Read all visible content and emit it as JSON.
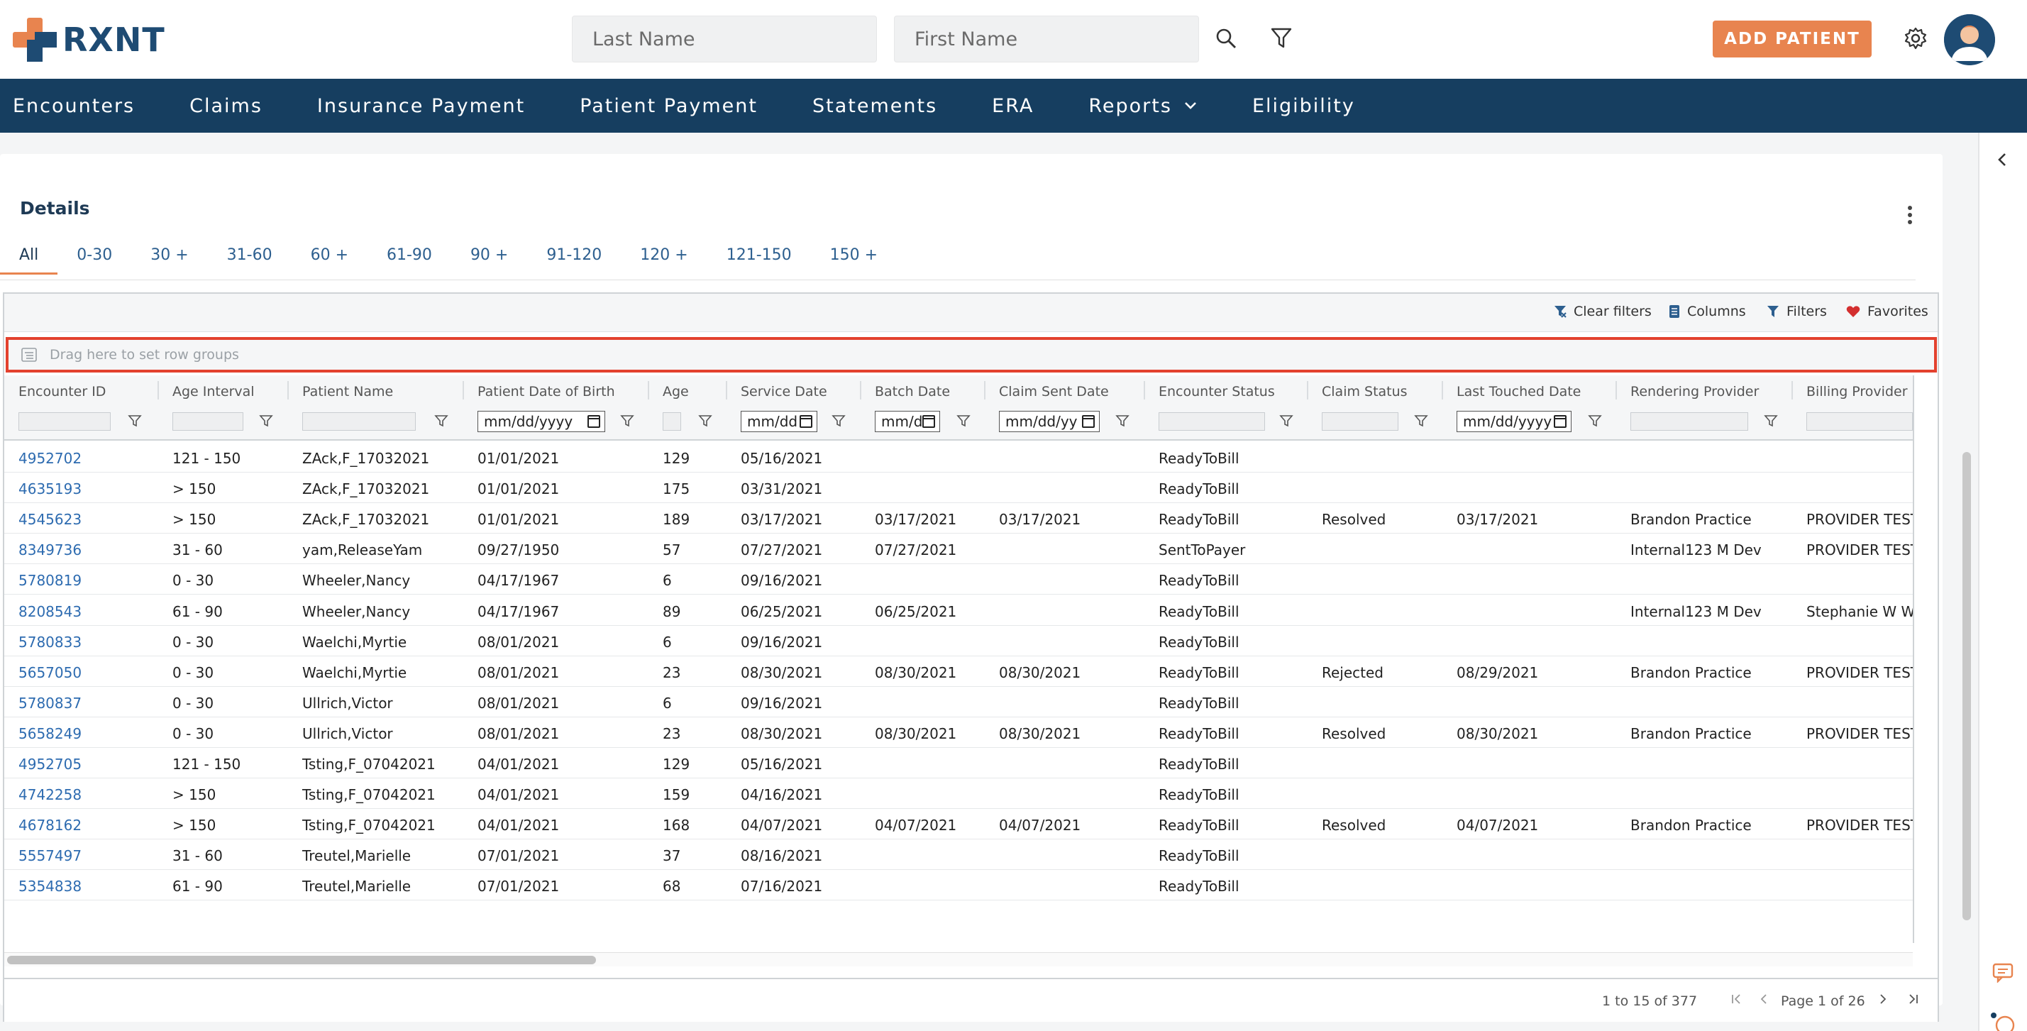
{
  "brand": {
    "name": "RXNT"
  },
  "search": {
    "last_name_placeholder": "Last Name",
    "first_name_placeholder": "First Name"
  },
  "actions": {
    "add_patient": "ADD PATIENT"
  },
  "nav": {
    "items": [
      "Encounters",
      "Claims",
      "Insurance Payment",
      "Patient Payment",
      "Statements",
      "ERA",
      "Reports",
      "Eligibility"
    ]
  },
  "details": {
    "title": "Details",
    "tabs": [
      "All",
      "0-30",
      "30 +",
      "31-60",
      "60 +",
      "61-90",
      "90 +",
      "91-120",
      "120 +",
      "121-150",
      "150 +"
    ],
    "active_tab": "All"
  },
  "toolbar": {
    "clear_filters": "Clear filters",
    "columns": "Columns",
    "filters": "Filters",
    "favorites": "Favorites"
  },
  "group_bar": {
    "placeholder": "Drag here to set row groups"
  },
  "columns": [
    "Encounter ID",
    "Age Interval",
    "Patient Name",
    "Patient Date of Birth",
    "Age",
    "Service Date",
    "Batch Date",
    "Claim Sent Date",
    "Encounter Status",
    "Claim Status",
    "Last Touched Date",
    "Rendering Provider",
    "Billing Provider"
  ],
  "filters": {
    "dob": "mm/dd/yyyy",
    "service": "mm/dd",
    "batch": "mm/d",
    "sent": "mm/dd/yy",
    "touched": "mm/dd/yyyy"
  },
  "rows": [
    [
      "4952702",
      "121 - 150",
      "ZAck,F_17032021",
      "01/01/2021",
      "129",
      "05/16/2021",
      "",
      "",
      "ReadyToBill",
      "",
      "",
      "",
      ""
    ],
    [
      "4635193",
      "> 150",
      "ZAck,F_17032021",
      "01/01/2021",
      "175",
      "03/31/2021",
      "",
      "",
      "ReadyToBill",
      "",
      "",
      "",
      ""
    ],
    [
      "4545623",
      "> 150",
      "ZAck,F_17032021",
      "01/01/2021",
      "189",
      "03/17/2021",
      "03/17/2021",
      "03/17/2021",
      "ReadyToBill",
      "Resolved",
      "03/17/2021",
      "Brandon Practice",
      "PROVIDER TEST"
    ],
    [
      "8349736",
      "31 - 60",
      "yam,ReleaseYam",
      "09/27/1950",
      "57",
      "07/27/2021",
      "07/27/2021",
      "",
      "SentToPayer",
      "",
      "",
      "Internal123 M Dev",
      "PROVIDER TEST"
    ],
    [
      "5780819",
      "0 - 30",
      "Wheeler,Nancy",
      "04/17/1967",
      "6",
      "09/16/2021",
      "",
      "",
      "ReadyToBill",
      "",
      "",
      "",
      ""
    ],
    [
      "8208543",
      "61 - 90",
      "Wheeler,Nancy",
      "04/17/1967",
      "89",
      "06/25/2021",
      "06/25/2021",
      "",
      "ReadyToBill",
      "",
      "",
      "Internal123 M Dev",
      "Stephanie W Wi"
    ],
    [
      "5780833",
      "0 - 30",
      "Waelchi,Myrtie",
      "08/01/2021",
      "6",
      "09/16/2021",
      "",
      "",
      "ReadyToBill",
      "",
      "",
      "",
      ""
    ],
    [
      "5657050",
      "0 - 30",
      "Waelchi,Myrtie",
      "08/01/2021",
      "23",
      "08/30/2021",
      "08/30/2021",
      "08/30/2021",
      "ReadyToBill",
      "Rejected",
      "08/29/2021",
      "Brandon Practice",
      "PROVIDER TEST"
    ],
    [
      "5780837",
      "0 - 30",
      "Ullrich,Victor",
      "08/01/2021",
      "6",
      "09/16/2021",
      "",
      "",
      "ReadyToBill",
      "",
      "",
      "",
      ""
    ],
    [
      "5658249",
      "0 - 30",
      "Ullrich,Victor",
      "08/01/2021",
      "23",
      "08/30/2021",
      "08/30/2021",
      "08/30/2021",
      "ReadyToBill",
      "Resolved",
      "08/30/2021",
      "Brandon Practice",
      "PROVIDER TEST"
    ],
    [
      "4952705",
      "121 - 150",
      "Tsting,F_07042021",
      "04/01/2021",
      "129",
      "05/16/2021",
      "",
      "",
      "ReadyToBill",
      "",
      "",
      "",
      ""
    ],
    [
      "4742258",
      "> 150",
      "Tsting,F_07042021",
      "04/01/2021",
      "159",
      "04/16/2021",
      "",
      "",
      "ReadyToBill",
      "",
      "",
      "",
      ""
    ],
    [
      "4678162",
      "> 150",
      "Tsting,F_07042021",
      "04/01/2021",
      "168",
      "04/07/2021",
      "04/07/2021",
      "04/07/2021",
      "ReadyToBill",
      "Resolved",
      "04/07/2021",
      "Brandon Practice",
      "PROVIDER TEST"
    ],
    [
      "5557497",
      "31 - 60",
      "Treutel,Marielle",
      "07/01/2021",
      "37",
      "08/16/2021",
      "",
      "",
      "ReadyToBill",
      "",
      "",
      "",
      ""
    ],
    [
      "5354838",
      "61 - 90",
      "Treutel,Marielle",
      "07/01/2021",
      "68",
      "07/16/2021",
      "",
      "",
      "ReadyToBill",
      "",
      "",
      "",
      ""
    ]
  ],
  "pager": {
    "range": "1 to 15 of 377",
    "page": "Page 1 of 26"
  },
  "colors": {
    "brand_navy": "#163e60",
    "accent_orange": "#e8844f",
    "link_blue": "#2d6bb0",
    "highlight_red": "#e3412e"
  }
}
